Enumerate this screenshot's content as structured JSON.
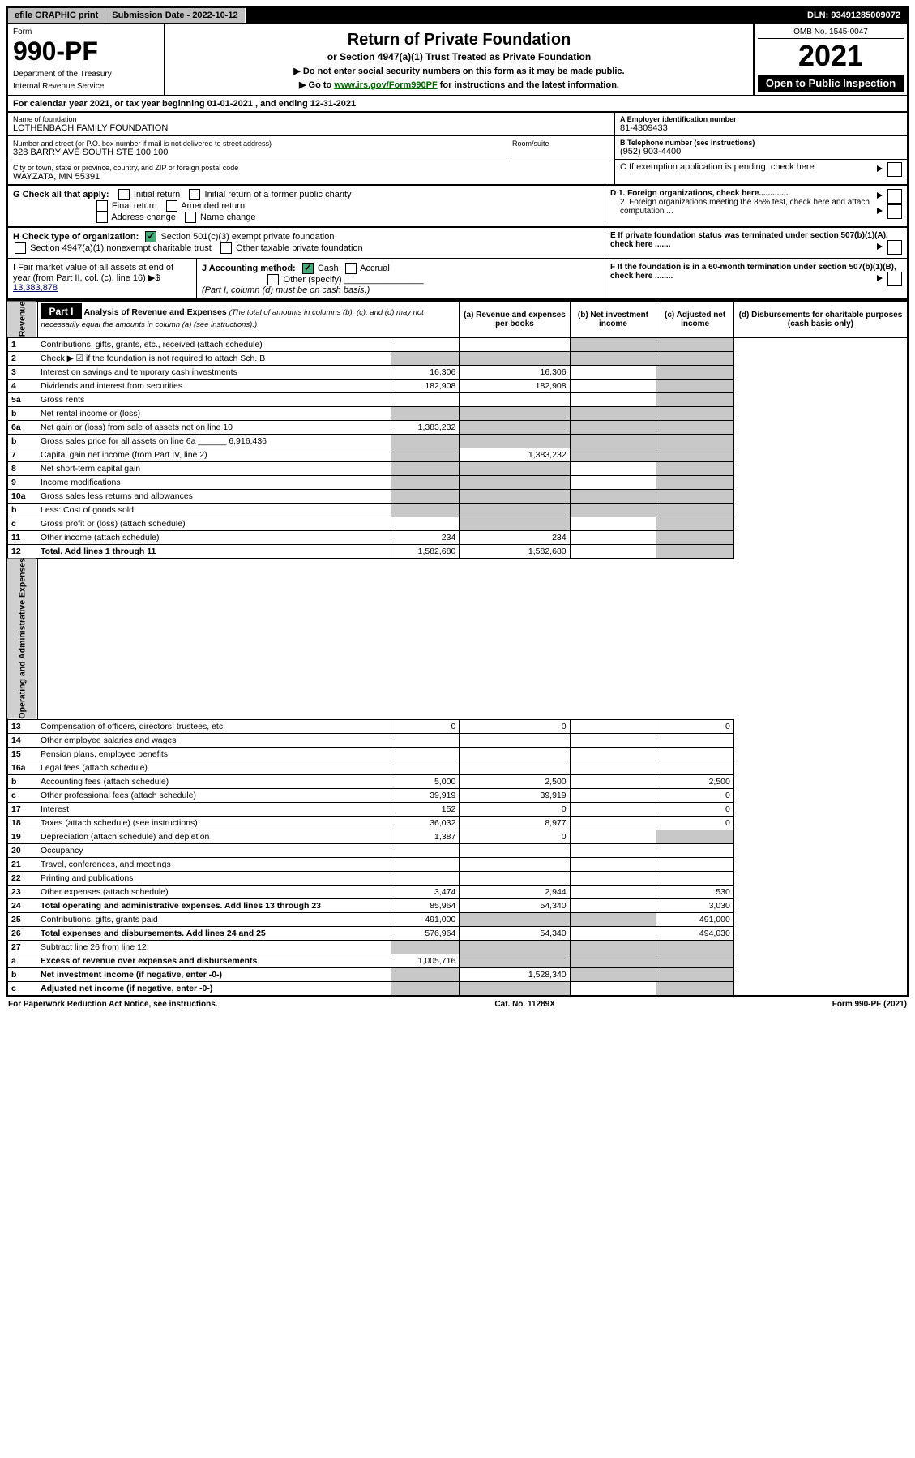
{
  "header": {
    "efile": "efile GRAPHIC print",
    "submission_label": "Submission Date - 2022-10-12",
    "dln": "DLN: 93491285009072"
  },
  "form_top": {
    "form_label": "Form",
    "form_number": "990-PF",
    "dept1": "Department of the Treasury",
    "dept2": "Internal Revenue Service",
    "title": "Return of Private Foundation",
    "subtitle": "or Section 4947(a)(1) Trust Treated as Private Foundation",
    "instr1": "▶ Do not enter social security numbers on this form as it may be made public.",
    "instr2": "▶ Go to www.irs.gov/Form990PF for instructions and the latest information.",
    "omb": "OMB No. 1545-0047",
    "year": "2021",
    "open": "Open to Public Inspection"
  },
  "calendar": "For calendar year 2021, or tax year beginning 01-01-2021            , and ending 12-31-2021",
  "info": {
    "name_label": "Name of foundation",
    "name": "LOTHENBACH FAMILY FOUNDATION",
    "address_label": "Number and street (or P.O. box number if mail is not delivered to street address)",
    "address": "328 BARRY AVE SOUTH STE 100 100",
    "room_label": "Room/suite",
    "city_label": "City or town, state or province, country, and ZIP or foreign postal code",
    "city": "WAYZATA, MN  55391",
    "ein_label": "A Employer identification number",
    "ein": "81-4309433",
    "phone_label": "B Telephone number (see instructions)",
    "phone": "(952) 903-4400",
    "c_label": "C If exemption application is pending, check here",
    "d1_label": "D 1. Foreign organizations, check here.............",
    "d2_label": "2. Foreign organizations meeting the 85% test, check here and attach computation ...",
    "e_label": "E If private foundation status was terminated under section 507(b)(1)(A), check here .......",
    "f_label": "F If the foundation is in a 60-month termination under section 507(b)(1)(B), check here ........"
  },
  "g": {
    "label": "G Check all that apply:",
    "initial": "Initial return",
    "initial_former": "Initial return of a former public charity",
    "final": "Final return",
    "amended": "Amended return",
    "address_change": "Address change",
    "name_change": "Name change"
  },
  "h": {
    "label": "H Check type of organization:",
    "opt1": "Section 501(c)(3) exempt private foundation",
    "opt2": "Section 4947(a)(1) nonexempt charitable trust",
    "opt3": "Other taxable private foundation"
  },
  "i": {
    "label": "I Fair market value of all assets at end of year (from Part II, col. (c), line 16) ▶$",
    "value": "13,383,878"
  },
  "j": {
    "label": "J Accounting method:",
    "cash": "Cash",
    "accrual": "Accrual",
    "other": "Other (specify)",
    "note": "(Part I, column (d) must be on cash basis.)"
  },
  "part1": {
    "label": "Part I",
    "title": "Analysis of Revenue and Expenses",
    "title_note": "(The total of amounts in columns (b), (c), and (d) may not necessarily equal the amounts in column (a) (see instructions).)",
    "col_a": "(a) Revenue and expenses per books",
    "col_b": "(b) Net investment income",
    "col_c": "(c) Adjusted net income",
    "col_d": "(d) Disbursements for charitable purposes (cash basis only)",
    "revenue_label": "Revenue",
    "expenses_label": "Operating and Administrative Expenses",
    "rows": [
      {
        "n": "1",
        "desc": "Contributions, gifts, grants, etc., received (attach schedule)",
        "a": "",
        "b": "",
        "gray_c": true,
        "gray_d": true
      },
      {
        "n": "2",
        "desc": "Check ▶ ☑ if the foundation is not required to attach Sch. B",
        "a": "",
        "b": "",
        "gray_a": true,
        "gray_b": true,
        "gray_c": true,
        "gray_d": true
      },
      {
        "n": "3",
        "desc": "Interest on savings and temporary cash investments",
        "a": "16,306",
        "b": "16,306",
        "gray_d": true
      },
      {
        "n": "4",
        "desc": "Dividends and interest from securities",
        "a": "182,908",
        "b": "182,908",
        "gray_d": true
      },
      {
        "n": "5a",
        "desc": "Gross rents",
        "a": "",
        "b": "",
        "gray_d": true
      },
      {
        "n": "b",
        "desc": "Net rental income or (loss)",
        "a": "",
        "gray_a": true,
        "gray_b": true,
        "gray_c": true,
        "gray_d": true
      },
      {
        "n": "6a",
        "desc": "Net gain or (loss) from sale of assets not on line 10",
        "a": "1,383,232",
        "gray_b": true,
        "gray_c": true,
        "gray_d": true
      },
      {
        "n": "b",
        "desc": "Gross sales price for all assets on line 6a ______ 6,916,436",
        "gray_a": true,
        "gray_b": true,
        "gray_c": true,
        "gray_d": true
      },
      {
        "n": "7",
        "desc": "Capital gain net income (from Part IV, line 2)",
        "gray_a": true,
        "b": "1,383,232",
        "gray_c": true,
        "gray_d": true
      },
      {
        "n": "8",
        "desc": "Net short-term capital gain",
        "gray_a": true,
        "gray_b": true,
        "gray_d": true
      },
      {
        "n": "9",
        "desc": "Income modifications",
        "gray_a": true,
        "gray_b": true,
        "gray_d": true
      },
      {
        "n": "10a",
        "desc": "Gross sales less returns and allowances",
        "gray_a": true,
        "gray_b": true,
        "gray_c": true,
        "gray_d": true
      },
      {
        "n": "b",
        "desc": "Less: Cost of goods sold",
        "gray_a": true,
        "gray_b": true,
        "gray_c": true,
        "gray_d": true
      },
      {
        "n": "c",
        "desc": "Gross profit or (loss) (attach schedule)",
        "gray_b": true,
        "gray_d": true
      },
      {
        "n": "11",
        "desc": "Other income (attach schedule)",
        "a": "234",
        "b": "234",
        "gray_d": true
      },
      {
        "n": "12",
        "desc": "Total. Add lines 1 through 11",
        "bold": true,
        "a": "1,582,680",
        "b": "1,582,680",
        "gray_d": true
      }
    ],
    "exp_rows": [
      {
        "n": "13",
        "desc": "Compensation of officers, directors, trustees, etc.",
        "a": "0",
        "b": "0",
        "d": "0"
      },
      {
        "n": "14",
        "desc": "Other employee salaries and wages"
      },
      {
        "n": "15",
        "desc": "Pension plans, employee benefits"
      },
      {
        "n": "16a",
        "desc": "Legal fees (attach schedule)"
      },
      {
        "n": "b",
        "desc": "Accounting fees (attach schedule)",
        "a": "5,000",
        "b": "2,500",
        "d": "2,500"
      },
      {
        "n": "c",
        "desc": "Other professional fees (attach schedule)",
        "a": "39,919",
        "b": "39,919",
        "d": "0"
      },
      {
        "n": "17",
        "desc": "Interest",
        "a": "152",
        "b": "0",
        "d": "0"
      },
      {
        "n": "18",
        "desc": "Taxes (attach schedule) (see instructions)",
        "a": "36,032",
        "b": "8,977",
        "d": "0"
      },
      {
        "n": "19",
        "desc": "Depreciation (attach schedule) and depletion",
        "a": "1,387",
        "b": "0",
        "gray_d": true
      },
      {
        "n": "20",
        "desc": "Occupancy"
      },
      {
        "n": "21",
        "desc": "Travel, conferences, and meetings"
      },
      {
        "n": "22",
        "desc": "Printing and publications"
      },
      {
        "n": "23",
        "desc": "Other expenses (attach schedule)",
        "a": "3,474",
        "b": "2,944",
        "d": "530"
      },
      {
        "n": "24",
        "desc": "Total operating and administrative expenses. Add lines 13 through 23",
        "bold": true,
        "a": "85,964",
        "b": "54,340",
        "d": "3,030"
      },
      {
        "n": "25",
        "desc": "Contributions, gifts, grants paid",
        "a": "491,000",
        "gray_b": true,
        "gray_c": true,
        "d": "491,000"
      },
      {
        "n": "26",
        "desc": "Total expenses and disbursements. Add lines 24 and 25",
        "bold": true,
        "a": "576,964",
        "b": "54,340",
        "d": "494,030"
      },
      {
        "n": "27",
        "desc": "Subtract line 26 from line 12:",
        "gray_a": true,
        "gray_b": true,
        "gray_c": true,
        "gray_d": true
      },
      {
        "n": "a",
        "desc": "Excess of revenue over expenses and disbursements",
        "bold": true,
        "a": "1,005,716",
        "gray_b": true,
        "gray_c": true,
        "gray_d": true
      },
      {
        "n": "b",
        "desc": "Net investment income (if negative, enter -0-)",
        "bold": true,
        "gray_a": true,
        "b": "1,528,340",
        "gray_c": true,
        "gray_d": true
      },
      {
        "n": "c",
        "desc": "Adjusted net income (if negative, enter -0-)",
        "bold": true,
        "gray_a": true,
        "gray_b": true,
        "gray_d": true
      }
    ]
  },
  "footer": {
    "left": "For Paperwork Reduction Act Notice, see instructions.",
    "center": "Cat. No. 11289X",
    "right": "Form 990-PF (2021)"
  }
}
